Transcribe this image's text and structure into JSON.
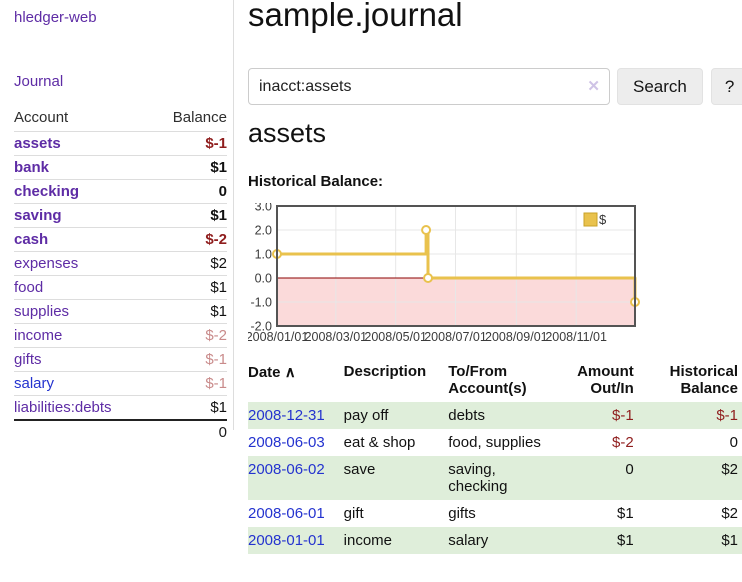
{
  "app": {
    "brand": "hledger-web"
  },
  "icons": {
    "clear": "✕",
    "sort_asc": "∧"
  },
  "colors": {
    "link_purple": "#5e2ca5",
    "link_blue": "#2433cf",
    "negative_strong": "#8f1d1d",
    "negative_soft": "#c98b8b",
    "row_green": "#dfeeda",
    "chart_line": "#e9c24d",
    "chart_negative_area": "#fbdada",
    "chart_zero_line": "#8b0000"
  },
  "sidebar": {
    "journal_label": "Journal",
    "accounts": {
      "headers": {
        "account": "Account",
        "balance": "Balance"
      },
      "rows": [
        {
          "name": "assets",
          "balance": "$-1"
        },
        {
          "name": "bank",
          "balance": "$1"
        },
        {
          "name": "checking",
          "balance": "0"
        },
        {
          "name": "saving",
          "balance": "$1"
        },
        {
          "name": "cash",
          "balance": "$-2"
        },
        {
          "name": "expenses",
          "balance": "$2"
        },
        {
          "name": "food",
          "balance": "$1"
        },
        {
          "name": "supplies",
          "balance": "$1"
        },
        {
          "name": "income",
          "balance": "$-2"
        },
        {
          "name": "gifts",
          "balance": "$-1"
        },
        {
          "name": "salary",
          "balance": "$-1"
        },
        {
          "name": "liabilities:debts",
          "balance": "$1"
        }
      ],
      "total": "0"
    }
  },
  "main": {
    "title": "sample.journal",
    "account_heading": "assets",
    "chart_label": "Historical Balance:"
  },
  "search": {
    "value": "inacct:assets",
    "button_label": "Search",
    "help_label": "?"
  },
  "chart_data": {
    "type": "line",
    "title": "Historical Balance:",
    "step": true,
    "x_range": [
      "2008-01-01",
      "2008-12-31"
    ],
    "ylim": [
      -2,
      3
    ],
    "yticks": [
      3.0,
      2.0,
      1.0,
      0.0,
      -1.0,
      -2.0
    ],
    "xticks": [
      "2008/01/01",
      "2008/03/01",
      "2008/05/01",
      "2008/07/01",
      "2008/09/01",
      "2008/11/01"
    ],
    "series": [
      {
        "name": "$",
        "color": "#e9c24d",
        "points": [
          [
            "2008-01-01",
            1.0
          ],
          [
            "2008-06-01",
            2.0
          ],
          [
            "2008-06-03",
            0.0
          ],
          [
            "2008-12-31",
            -1.0
          ]
        ]
      }
    ],
    "legend": {
      "position": "top-right",
      "entries": [
        {
          "label": "$",
          "color": "#e9c24d"
        }
      ]
    },
    "zero_line_color": "#8b0000",
    "negative_area_color": "#fbdada",
    "grid": true
  },
  "register": {
    "headers": {
      "date": "Date",
      "description": "Description",
      "accounts": "To/From Account(s)",
      "amount": "Amount Out/In",
      "balance": "Historical Balance"
    },
    "rows": [
      {
        "date": "2008-12-31",
        "description": "pay off",
        "accounts": "debts",
        "amount": "$-1",
        "balance": "$-1"
      },
      {
        "date": "2008-06-03",
        "description": "eat & shop",
        "accounts": "food, supplies",
        "amount": "$-2",
        "balance": "0"
      },
      {
        "date": "2008-06-02",
        "description": "save",
        "accounts": "saving,\nchecking",
        "amount": "0",
        "balance": "$2"
      },
      {
        "date": "2008-06-01",
        "description": "gift",
        "accounts": "gifts",
        "amount": "$1",
        "balance": "$2"
      },
      {
        "date": "2008-01-01",
        "description": "income",
        "accounts": "salary",
        "amount": "$1",
        "balance": "$1"
      }
    ]
  }
}
